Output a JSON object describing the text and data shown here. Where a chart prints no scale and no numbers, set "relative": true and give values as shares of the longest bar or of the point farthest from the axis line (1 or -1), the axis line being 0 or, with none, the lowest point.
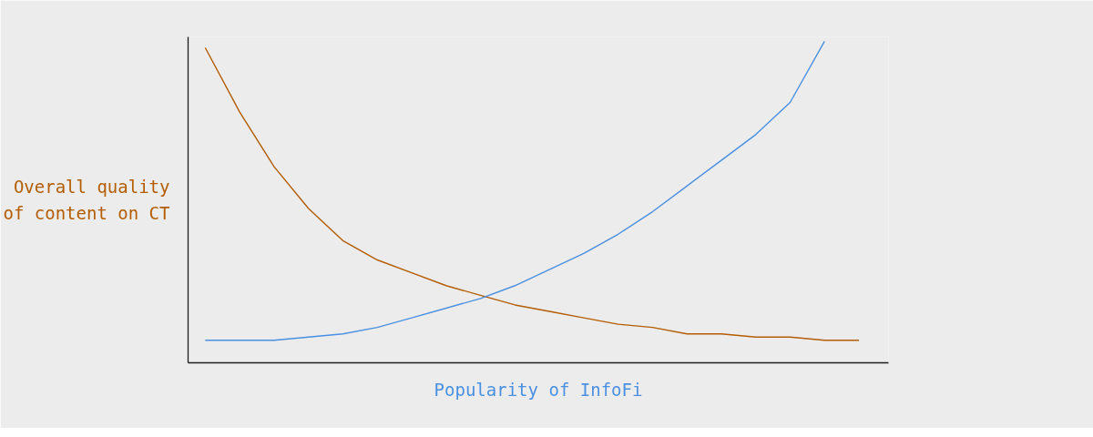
{
  "chart_data": {
    "type": "line",
    "relative": true,
    "xlabel": "Popularity of InfoFi",
    "ylabel": "Overall quality of content on CT",
    "categories": [
      null,
      null,
      null,
      null,
      null,
      null,
      null,
      null,
      null,
      null,
      null,
      null,
      null,
      null,
      null,
      null,
      null,
      null,
      null,
      null
    ],
    "series": [
      {
        "color": "#b35c00",
        "values": [
          0.98,
          0.78,
          0.61,
          0.48,
          0.38,
          0.32,
          0.28,
          0.24,
          0.21,
          0.18,
          0.16,
          0.14,
          0.12,
          0.11,
          0.09,
          0.09,
          0.08,
          0.08,
          0.07,
          0.07
        ]
      },
      {
        "color": "#4a90e2",
        "values": [
          0.07,
          0.07,
          0.07,
          0.08,
          0.09,
          0.11,
          0.14,
          0.17,
          0.2,
          0.24,
          0.29,
          0.34,
          0.4,
          0.47,
          0.55,
          0.63,
          0.71,
          0.81,
          1.0,
          null
        ]
      }
    ],
    "line_style": "solid"
  }
}
